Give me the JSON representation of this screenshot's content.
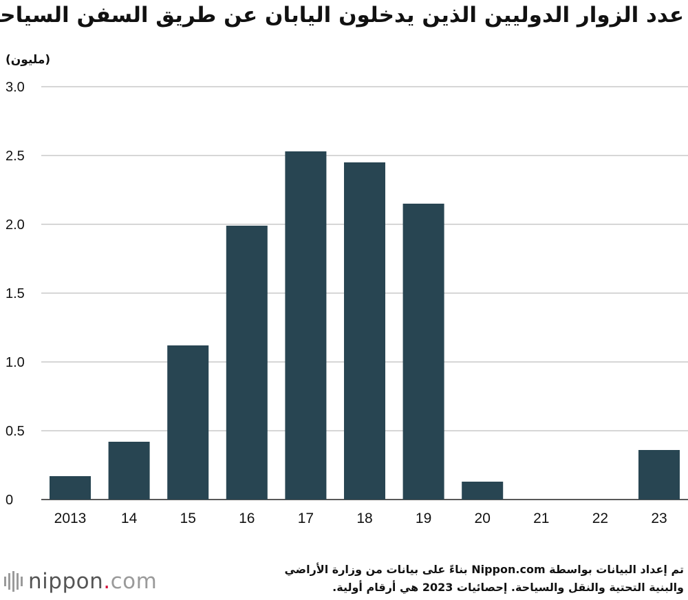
{
  "header": {
    "title": "عدد الزوار الدوليين الذين يدخلون اليابان عن طريق السفن السياحية",
    "unit_label": "(مليون)"
  },
  "chart_data": {
    "type": "bar",
    "categories": [
      "2013",
      "14",
      "15",
      "16",
      "17",
      "18",
      "19",
      "20",
      "21",
      "22",
      "23"
    ],
    "values": [
      0.17,
      0.42,
      1.12,
      1.99,
      2.53,
      2.45,
      2.15,
      0.13,
      0,
      0,
      0.36
    ],
    "ylim": [
      0,
      3.0
    ],
    "yticks": [
      0,
      0.5,
      1.0,
      1.5,
      2.0,
      2.5,
      3.0
    ],
    "ytick_labels": [
      "0",
      "0.5",
      "1.0",
      "1.5",
      "2.0",
      "2.5",
      "3.0"
    ],
    "grid": true,
    "bar_color": "#284552",
    "grid_color": "#c8c8c8"
  },
  "footer": {
    "logo_main": "nippon",
    "logo_dot": ".",
    "logo_suffix": "com",
    "source_line1": "تم إعداد البيانات بواسطة Nippon.com بناءً على بيانات من وزارة الأراضي",
    "source_line2": "والبنية التحتية والنقل والسياحة. إحصائيات 2023 هي أرقام أولية."
  }
}
